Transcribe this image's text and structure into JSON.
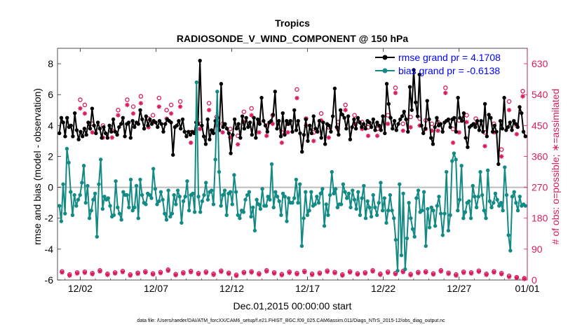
{
  "chart_data": {
    "type": "line",
    "title": "Tropics",
    "subtitle": "RADIOSONDE_V_WIND_COMPONENT @ 150 hPa",
    "xlabel": "Dec.01,2015 00:00:00 start",
    "ylabel": "rmse and bias (model - observation)",
    "ylabel_right": "# of obs: o=possible; ∗=assimilated",
    "footnote": "data file: /Users/raeder/DAI/ATM_forcXX/CAM6_setup/f.e21.FHIST_BGC.f09_025.CAM6assim.011/Diags_NTrS_2015-12/obs_diag_output.nc",
    "xlim": [
      0,
      31
    ],
    "ylim": [
      -6,
      9
    ],
    "ylim_right": [
      0,
      675
    ],
    "x_ticks": [
      1.5,
      6.5,
      11.5,
      16.5,
      21.5,
      26.5,
      31
    ],
    "x_tick_labels": [
      "12/02",
      "12/07",
      "12/12",
      "12/17",
      "12/22",
      "12/27",
      "01/01"
    ],
    "y_ticks": [
      -6,
      -4,
      -2,
      0,
      2,
      4,
      6,
      8
    ],
    "y_tick_labels": [
      "-6",
      "-4",
      "-2",
      "0",
      "2",
      "4",
      "6",
      "8"
    ],
    "y_ticks_right": [
      0,
      90,
      180,
      270,
      360,
      450,
      540,
      630
    ],
    "y_tick_labels_right": [
      "0",
      "90",
      "180",
      "270",
      "360",
      "450",
      "540",
      "630"
    ],
    "zero_line": 0,
    "legend_position": "top-right",
    "colors": {
      "rmse": "#000000",
      "bias": "#148a85",
      "obs": "#d81b60",
      "zero": "#bdbdbd",
      "legend_text": "#0000ff"
    },
    "series": [
      {
        "name": "rmse grand pr = 4.1708",
        "key": "rmse",
        "values": [
          3.5,
          4.5,
          4.2,
          3.3,
          4.5,
          3.9,
          4.0,
          3.3,
          4.8,
          3.7,
          3.1,
          3.6,
          3.3,
          3.8,
          3.4,
          4.2,
          3.8,
          5.1,
          4.0,
          3.5,
          4.2,
          3.8,
          3.2,
          3.9,
          3.5,
          3.2,
          4.0,
          3.6,
          4.4,
          3.6,
          3.4,
          3.9,
          4.1,
          4.5,
          3.3,
          4.1,
          4.2,
          3.2,
          4.3,
          3.9,
          4.2,
          4.1,
          5.0,
          4.4,
          3.8,
          4.6,
          4.0,
          4.4,
          4.1,
          4.3,
          4.2,
          3.9,
          4.3,
          4.1,
          3.6,
          4.1,
          4.4,
          4.3,
          4.2,
          2.1,
          3.9,
          4.0,
          4.3,
          3.8,
          4.4,
          3.6,
          3.3,
          3.6,
          3.4,
          3.6,
          3.5,
          4.2,
          4.1,
          8.2,
          4.0,
          3.3,
          2.8,
          4.4,
          3.1,
          3.7,
          3.5,
          4.3,
          4.5,
          3.7,
          6.7,
          3.9,
          4.1,
          3.8,
          3.5,
          2.2,
          3.4,
          4.4,
          3.8,
          4.1,
          3.2,
          4.6,
          3.8,
          4.5,
          3.9,
          4.2,
          3.4,
          4.5,
          3.2,
          4.4,
          4.1,
          5.8,
          4.3,
          4.0,
          3.6,
          4.2,
          4.3,
          4.7,
          6.2,
          3.8,
          4.3,
          3.3,
          4.8,
          3.4,
          4.3,
          4.1,
          4.3,
          3.6,
          5.0,
          3.7,
          4.3,
          3.5,
          2.3,
          3.4,
          4.4,
          3.0,
          4.0,
          3.5,
          4.6,
          3.8,
          3.6,
          4.3,
          3.2,
          4.2,
          2.8,
          4.1,
          4.0,
          3.6,
          4.6,
          6.4,
          3.9,
          3.4,
          5.0,
          4.7,
          4.5,
          3.8,
          4.6,
          3.1,
          3.9,
          4.4,
          3.8,
          4.5,
          4.2,
          3.9,
          4.1,
          3.8,
          4.3,
          4.2,
          3.9,
          4.4,
          3.7,
          4.2,
          4.0,
          3.7,
          4.6,
          3.5,
          6.7,
          5.4,
          4.5,
          3.8,
          4.3,
          3.7,
          4.1,
          4.4,
          4.6,
          4.9,
          4.4,
          3.6,
          6.5,
          5.0,
          7.6,
          5.5,
          4.6,
          7.3,
          4.0,
          3.5,
          3.8,
          5.6,
          4.4,
          3.2,
          2.8,
          3.9,
          4.5,
          4.0,
          4.1,
          3.6,
          4.2,
          4.3,
          4.4,
          3.9,
          4.4,
          4.5,
          3.6,
          5.8,
          4.5,
          4.3,
          4.8,
          3.2,
          2.6,
          3.9,
          4.0,
          4.1,
          3.9,
          4.3,
          3.7,
          4.3,
          3.6,
          5.4,
          3.3,
          4.7,
          4.5,
          3.6,
          4.0,
          3.6,
          1.5,
          4.3,
          3.8,
          5.8,
          3.7,
          3.9,
          4.2,
          3.7,
          4.3,
          4.1,
          3.9,
          5.2,
          4.8,
          3.6,
          3.3
        ]
      },
      {
        "name": "bias grand pr = -0.6138",
        "key": "bias",
        "values": [
          -1.2,
          -2.2,
          0.2,
          -1.7,
          2.5,
          1.6,
          -0.3,
          -1.8,
          -0.5,
          -1.2,
          -0.8,
          -0.5,
          0.3,
          1.4,
          -1.0,
          0.1,
          -2.0,
          -1.5,
          -0.8,
          -0.4,
          -3.2,
          0.2,
          1.8,
          -1.4,
          -0.6,
          -0.8,
          -0.7,
          -1.2,
          -1.9,
          -1.8,
          0.4,
          -1.3,
          -1.7,
          -2.1,
          -0.3,
          -0.5,
          -0.5,
          -1.3,
          0.5,
          -1.5,
          -1.3,
          0.1,
          -2.0,
          0.5,
          -0.5,
          -1.0,
          -1.1,
          -0.4,
          -0.5,
          -0.7,
          1.2,
          -0.1,
          -1.1,
          -0.9,
          -0.3,
          -0.8,
          -1.7,
          -2.1,
          -0.2,
          -1.9,
          -1.7,
          -0.5,
          -1.1,
          -0.2,
          -0.6,
          -2.3,
          -0.9,
          -0.6,
          0.4,
          -1.5,
          -0.5,
          -0.4,
          -1.6,
          6.8,
          -0.6,
          -1.6,
          -0.9,
          -0.5,
          0.3,
          -0.8,
          -0.3,
          -0.2,
          -1.1,
          1.8,
          6.2,
          1.0,
          -1.2,
          -0.5,
          -0.2,
          -1.8,
          -0.4,
          -0.3,
          -1.1,
          0.8,
          -0.3,
          -1.8,
          -2.0,
          -1.5,
          -1.6,
          -0.8,
          -0.5,
          -0.3,
          -1.9,
          -1.3,
          -2.8,
          -0.8,
          -1.1,
          -1.4,
          -0.1,
          -1.2,
          -1.2,
          -0.6,
          -0.8,
          1.5,
          -1.3,
          -0.3,
          -0.6,
          -0.9,
          -1.8,
          -0.4,
          -0.6,
          -2.2,
          -0.7,
          -1.0,
          -1.0,
          -0.7,
          0.5,
          -1.0,
          0.2,
          -3.8,
          -2.0,
          -0.3,
          -1.8,
          -1.5,
          -0.3,
          -1.2,
          -1.1,
          -0.6,
          -1.0,
          -0.4,
          -0.1,
          -2.5,
          -1.1,
          -1.8,
          -0.5,
          1.0,
          -0.4,
          -0.1,
          -1.3,
          -1.1,
          -1.1,
          0.2,
          -0.3,
          -0.7,
          -0.4,
          -1.3,
          -0.2,
          -0.8,
          -1.4,
          -0.3,
          -1.8,
          -0.7,
          0.1,
          -2.0,
          -0.9,
          -1.3,
          -1.9,
          -0.5,
          -1.3,
          -1.8,
          -1.0,
          0.3,
          -1.5,
          -0.7,
          -2.3,
          -1.5,
          -0.5,
          -1.5,
          -2.0,
          -3.4,
          -5.4,
          0.2,
          -4.4,
          -0.4,
          -5.3,
          -3.3,
          -1.0,
          -2.0,
          -2.7,
          -3.2,
          -0.7,
          -0.2,
          -1.6,
          -1.5,
          -0.3,
          -3.8,
          -1.4,
          -2.6,
          -1.3,
          -1.5,
          -2.5,
          -1.2,
          -0.6,
          -1.7,
          -3.1,
          -1.7,
          1.0,
          -2.8,
          -1.8,
          1.7,
          2.2,
          1.8,
          -1.5,
          -0.8,
          1.4,
          -2.0,
          -1.6,
          -1.0,
          -0.9,
          -2.0,
          0.1,
          -0.6,
          -1.3,
          -0.6,
          1.0,
          -0.5,
          -1.5,
          -2.0,
          1.1,
          -0.9,
          -1.3,
          -1.0,
          -0.4,
          -0.8,
          -1.2,
          -1.0,
          -1.5,
          1.3,
          -0.5,
          -3.1,
          -4.1,
          -0.6,
          -0.3,
          -1.0,
          -1.5,
          -0.6,
          -1.2,
          -1.1,
          -1.2
        ]
      },
      {
        "name": "possible",
        "key": "obs_possible",
        "axis": "right",
        "marker": "o",
        "x": [
          1.5,
          1.8,
          2.3,
          3.0,
          3.6,
          4.0,
          4.6,
          5.0,
          5.5,
          6.0,
          6.3,
          6.7,
          7.2,
          7.5,
          8.1,
          8.8,
          9.4,
          10.0,
          10.5,
          10.9,
          11.4,
          11.9,
          12.3,
          12.8,
          13.3,
          13.8,
          14.2,
          14.8,
          15.2,
          15.8,
          16.4,
          16.9,
          17.4,
          17.9,
          18.5,
          19.0,
          19.6,
          20.1,
          20.5,
          21.1,
          21.8,
          22.3,
          22.8,
          23.3,
          23.9,
          24.3,
          24.7,
          25.1,
          25.6,
          26.1,
          26.5,
          27.0,
          27.6,
          28.2,
          28.8,
          29.3,
          29.8,
          30.3,
          30.7
        ],
        "y": [
          525,
          510,
          455,
          450,
          435,
          495,
          525,
          505,
          535,
          470,
          480,
          530,
          495,
          510,
          520,
          430,
          455,
          515,
          475,
          455,
          440,
          420,
          490,
          500,
          460,
          450,
          480,
          430,
          455,
          555,
          470,
          430,
          485,
          445,
          460,
          510,
          480,
          460,
          445,
          440,
          480,
          560,
          455,
          475,
          470,
          465,
          455,
          460,
          560,
          440,
          465,
          480,
          470,
          430,
          455,
          380,
          520,
          450,
          550
        ]
      },
      {
        "name": "assimilated",
        "key": "obs_assimilated",
        "axis": "right",
        "marker": "*",
        "x": [
          1.5,
          1.8,
          2.3,
          3.0,
          3.6,
          4.0,
          4.6,
          5.0,
          5.5,
          6.0,
          6.3,
          6.7,
          7.2,
          7.5,
          8.1,
          8.8,
          9.4,
          10.0,
          10.5,
          10.9,
          11.4,
          11.9,
          12.3,
          12.8,
          13.3,
          13.8,
          14.2,
          14.8,
          15.2,
          15.8,
          16.4,
          16.9,
          17.4,
          17.9,
          18.5,
          19.0,
          19.6,
          20.1,
          20.5,
          21.1,
          21.8,
          22.3,
          22.8,
          23.3,
          23.9,
          24.3,
          24.7,
          25.1,
          25.6,
          26.1,
          26.5,
          27.0,
          27.6,
          28.2,
          28.8,
          29.3,
          29.8,
          30.3,
          30.7
        ],
        "y": [
          500,
          485,
          430,
          415,
          415,
          480,
          510,
          485,
          515,
          445,
          460,
          505,
          470,
          485,
          505,
          400,
          440,
          495,
          450,
          430,
          415,
          395,
          460,
          480,
          430,
          420,
          455,
          400,
          430,
          530,
          450,
          405,
          465,
          415,
          440,
          495,
          455,
          440,
          420,
          420,
          455,
          545,
          435,
          445,
          450,
          440,
          435,
          435,
          545,
          400,
          430,
          460,
          455,
          390,
          430,
          360,
          495,
          425,
          535
        ]
      },
      {
        "name": "possible-low",
        "key": "obs_possible_low",
        "axis": "right",
        "marker": "o",
        "x": [
          0.3,
          0.8,
          1.3,
          1.8,
          2.3,
          2.8,
          3.3,
          3.8,
          4.3,
          4.8,
          5.3,
          5.8,
          6.3,
          6.8,
          7.3,
          7.8,
          8.3,
          8.8,
          9.3,
          9.8,
          10.3,
          10.8,
          11.3,
          11.8,
          12.3,
          12.8,
          13.3,
          13.8,
          14.3,
          14.8,
          15.3,
          15.8,
          16.3,
          16.8,
          17.3,
          17.8,
          18.3,
          18.8,
          19.3,
          19.8,
          20.3,
          20.8,
          21.3,
          21.8,
          22.3,
          22.8,
          23.3,
          23.8,
          24.3,
          24.8,
          25.3,
          25.8,
          26.3,
          26.8,
          27.3,
          27.8,
          28.3,
          28.8,
          29.3,
          29.8,
          30.3,
          30.8
        ],
        "y": [
          25,
          16,
          22,
          24,
          20,
          28,
          18,
          22,
          26,
          16,
          21,
          25,
          19,
          23,
          30,
          17,
          22,
          26,
          20,
          24,
          18,
          27,
          21,
          15,
          23,
          25,
          19,
          28,
          22,
          17,
          24,
          20,
          26,
          18,
          21,
          27,
          23,
          16,
          25,
          19,
          22,
          28,
          18,
          24,
          20,
          26,
          17,
          23,
          25,
          19,
          28,
          21,
          16,
          24,
          22,
          27,
          18,
          25,
          20,
          12,
          8,
          5
        ]
      },
      {
        "name": "assimilated-low",
        "key": "obs_assimilated_low",
        "axis": "right",
        "marker": "*",
        "x": [
          0.3,
          0.8,
          1.3,
          1.8,
          2.3,
          2.8,
          3.3,
          3.8,
          4.3,
          4.8,
          5.3,
          5.8,
          6.3,
          6.8,
          7.3,
          7.8,
          8.3,
          8.8,
          9.3,
          9.8,
          10.3,
          10.8,
          11.3,
          11.8,
          12.3,
          12.8,
          13.3,
          13.8,
          14.3,
          14.8,
          15.3,
          15.8,
          16.3,
          16.8,
          17.3,
          17.8,
          18.3,
          18.8,
          19.3,
          19.8,
          20.3,
          20.8,
          21.3,
          21.8,
          22.3,
          22.8,
          23.3,
          23.8,
          24.3,
          24.8,
          25.3,
          25.8,
          26.3,
          26.8,
          27.3,
          27.8,
          28.3,
          28.8,
          29.3,
          29.8,
          30.3,
          30.8
        ],
        "y": [
          22,
          13,
          19,
          21,
          17,
          25,
          15,
          19,
          23,
          13,
          18,
          22,
          16,
          20,
          27,
          14,
          19,
          23,
          17,
          21,
          15,
          24,
          18,
          12,
          20,
          22,
          16,
          25,
          19,
          14,
          21,
          17,
          23,
          15,
          18,
          24,
          20,
          13,
          22,
          16,
          19,
          25,
          15,
          21,
          17,
          23,
          14,
          20,
          22,
          16,
          25,
          18,
          13,
          21,
          19,
          24,
          15,
          22,
          17,
          9,
          6,
          3
        ]
      }
    ]
  }
}
